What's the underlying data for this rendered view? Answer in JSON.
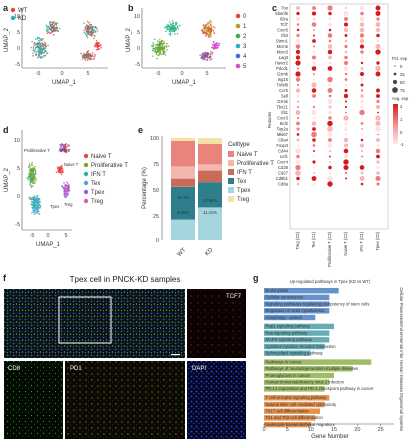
{
  "panels": {
    "a": {
      "label": "a",
      "xlabel": "UMAP_1",
      "ylabel": "UMAP_2",
      "xticks": [
        "-5",
        "0",
        "5"
      ],
      "yticks": [
        "10",
        "5",
        "0",
        "-5"
      ],
      "legend": [
        {
          "name": "WT",
          "color": "#e8453c"
        },
        {
          "name": "KD",
          "color": "#27b3a9"
        }
      ]
    },
    "b": {
      "label": "b",
      "xlabel": "UMAP_1",
      "ylabel": "UMAP_2",
      "xticks": [
        "-5",
        "0",
        "5"
      ],
      "yticks": [
        "10",
        "5",
        "0",
        "-5"
      ],
      "legend": [
        {
          "name": "0",
          "color": "#e8453c"
        },
        {
          "name": "1",
          "color": "#b39b1f"
        },
        {
          "name": "2",
          "color": "#3fae49"
        },
        {
          "name": "3",
          "color": "#23b5c4"
        },
        {
          "name": "4",
          "color": "#4a67d8"
        },
        {
          "name": "5",
          "color": "#d24fc9"
        }
      ]
    },
    "c": {
      "label": "c",
      "ylabel": "Features",
      "genes": [
        "Tox",
        "Slamf6",
        "Il2ra",
        "Tcf7",
        "Cxcr6",
        "Ifit3",
        "Stmn1",
        "Mcm5",
        "Mcm3",
        "Lag3",
        "Havcr2",
        "Pdcd1",
        "Gzmk",
        "Isg15",
        "Tnfsf8",
        "Ccr5",
        "Sell",
        "Gzmk",
        "Tbx21",
        "Ifit1",
        "Cxcr3",
        "Bcl2",
        "Top2a",
        "Mki67",
        "Ctla4",
        "Foxp3",
        "Cd44",
        "Lef1",
        "Cxcr4",
        "Cd28",
        "Cd27",
        "Cd8b1",
        "Cd8a"
      ],
      "celltypes": [
        "Treg (C5)",
        "Tex (C1)",
        "Proliferative T (C3)",
        "Naive T (C2)",
        "IFN T (C4)",
        "Tpex (C0)"
      ],
      "legend_pct_title": "Pct. exp",
      "pct_levels": [
        "0",
        "25",
        "50",
        "75"
      ],
      "legend_avg_title": "Avg. exp",
      "avg_ticks": [
        "2",
        "1",
        "0",
        "-1"
      ]
    },
    "d": {
      "label": "d",
      "xlabel": "UMAP_1",
      "ylabel": "UMAP_2",
      "xticks": [
        "-5",
        "0",
        "5"
      ],
      "yticks": [
        "10",
        "5",
        "0",
        "-5"
      ],
      "cluster_labels": [
        "Proliferative T",
        "IFN T",
        "Naive T",
        "Tex",
        "Tpex",
        "Treg"
      ],
      "legend": [
        {
          "name": "Naive T",
          "color": "#e8453c"
        },
        {
          "name": "Proliferative T",
          "color": "#7aa51e"
        },
        {
          "name": "IFN T",
          "color": "#27b39e"
        },
        {
          "name": "Tex",
          "color": "#4fa3e0"
        },
        {
          "name": "Tpex",
          "color": "#8b64e0"
        },
        {
          "name": "Treg",
          "color": "#e25aa6"
        }
      ]
    },
    "e": {
      "label": "e",
      "ylabel": "Percentage (%)",
      "yticks": [
        "100",
        "75",
        "50",
        "25",
        "0"
      ],
      "legend_title": "Celltype",
      "legend": [
        {
          "name": "Naive T",
          "color": "#e8847c"
        },
        {
          "name": "Proliferative T",
          "color": "#f2b8b0"
        },
        {
          "name": "IFN T",
          "color": "#c86b5b"
        },
        {
          "name": "Tex",
          "color": "#2d7f8e"
        },
        {
          "name": "Tpex",
          "color": "#a5d6de"
        },
        {
          "name": "Treg",
          "color": "#f3e1a8"
        }
      ],
      "bar_labels": [
        "WT",
        "KD"
      ],
      "inner_labels": [
        "32.1%",
        "8.05%",
        "24.66%",
        "11.41%"
      ]
    },
    "f": {
      "label": "f",
      "title": "Tpex cell in PNCK-KD samples",
      "channels": [
        "TCF7",
        "CD8",
        "PD1",
        "DAPI"
      ]
    },
    "g": {
      "label": "g",
      "title": "Up-regulated pathways in Tpex (KD vs WT)",
      "xlabel": "Gene Number",
      "xticks": [
        "0",
        "5",
        "10",
        "15",
        "20",
        "25"
      ],
      "groups": [
        "Cellular Processes",
        "Environmental Infor",
        "Human Diseases",
        "Organismal Systems"
      ],
      "pathways": [
        "Endocytosis",
        "Cellular senescence",
        "Signaling pathways regulating pluripotency of stem cells",
        "Regulation of actin cytoskeleton",
        "Autophagy - animal",
        "Rap1 signaling pathway",
        "Ras signaling pathway",
        "MAPK signaling pathway",
        "Cytokine-cytokine receptor interaction",
        "Sphingolipid signaling pathway",
        "Pathways in cancer",
        "Pathways of neurodegeneration-multiple diseases",
        "Proteoglycans in cancer",
        "Human immunodeficiency virus 1 infection",
        "PD-L1 expression and PD-1 checkpoint pathway in cancer",
        "T cell receptor signaling pathway",
        "Natural killer cell mediated cytotoxicity",
        "Th17 cell differentiation",
        "Th1 and Th2 cell differentiation",
        "Leukocyte transendothelial migration"
      ]
    }
  },
  "chart_data": [
    {
      "type": "bar",
      "panel": "e",
      "stacked": true,
      "categories": [
        "WT",
        "KD"
      ],
      "series": [
        {
          "name": "Tpex",
          "values": [
            20,
            32
          ]
        },
        {
          "name": "Tex",
          "values": [
            32.1,
            24.66
          ]
        },
        {
          "name": "IFN T",
          "values": [
            8.05,
            11.41
          ]
        },
        {
          "name": "Proliferative T",
          "values": [
            12,
            6
          ]
        },
        {
          "name": "Naive T",
          "values": [
            25,
            20
          ]
        },
        {
          "name": "Treg",
          "values": [
            2.85,
            5.93
          ]
        }
      ],
      "ylabel": "Percentage (%)",
      "ylim": [
        0,
        100
      ]
    },
    {
      "type": "bar",
      "panel": "g",
      "orientation": "horizontal",
      "categories": [
        "Endocytosis",
        "Cellular senescence",
        "Signaling pathways regulating pluripotency of stem cells",
        "Regulation of actin cytoskeleton",
        "Autophagy - animal",
        "Rap1 signaling pathway",
        "Ras signaling pathway",
        "MAPK signaling pathway",
        "Cytokine-cytokine receptor interaction",
        "Sphingolipid signaling pathway",
        "Pathways in cancer",
        "Pathways of neurodegeneration-multiple diseases",
        "Proteoglycans in cancer",
        "Human immunodeficiency virus 1 infection",
        "PD-L1 expression and PD-1 checkpoint pathway in cancer",
        "T cell receptor signaling pathway",
        "Natural killer cell mediated cytotoxicity",
        "Th17 cell differentiation",
        "Th1 and Th2 cell differentiation",
        "Leukocyte transendothelial migration"
      ],
      "values": [
        16,
        14,
        14,
        14,
        11,
        15,
        14,
        14,
        13,
        10,
        23,
        19,
        15,
        14,
        13,
        14,
        13,
        12,
        11,
        10
      ],
      "group_colors": [
        "#4a7fc1",
        "#4a9ea8",
        "#8db24a",
        "#e0802f"
      ],
      "xlabel": "Gene Number",
      "xlim": [
        0,
        27
      ]
    },
    {
      "type": "scatter",
      "panel": "c",
      "subtype": "dotplot",
      "avg_range": [
        -1,
        2
      ],
      "pct_range": [
        0,
        75
      ]
    }
  ]
}
